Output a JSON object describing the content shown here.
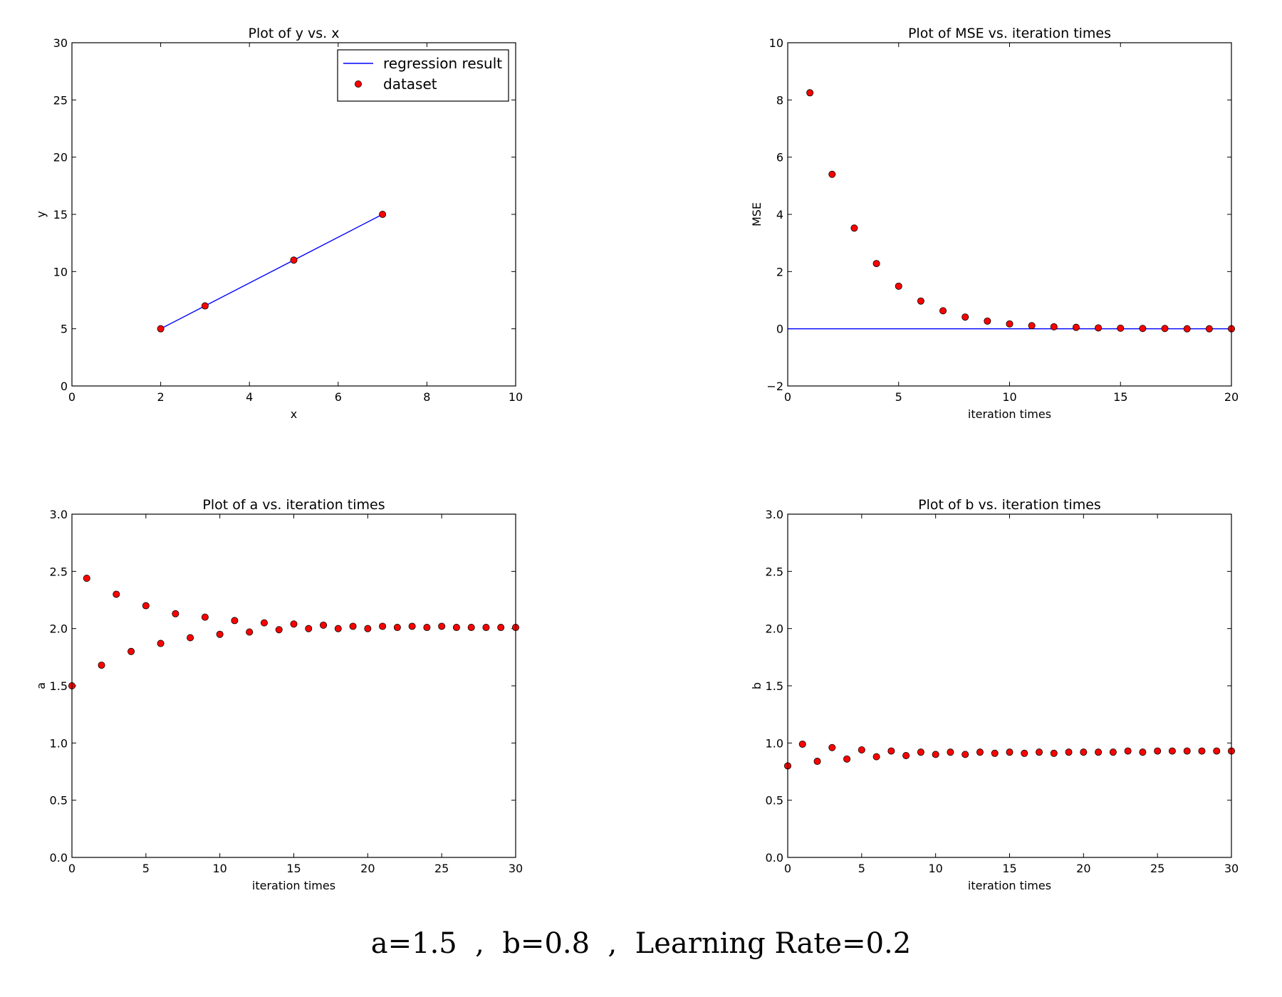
{
  "chart_data": [
    {
      "type": "scatter",
      "title": "Plot of y vs. x",
      "xlabel": "x",
      "ylabel": "y",
      "xlim": [
        0,
        10
      ],
      "ylim": [
        0,
        30
      ],
      "xticks": [
        0,
        2,
        4,
        6,
        8,
        10
      ],
      "yticks": [
        0,
        5,
        10,
        15,
        20,
        25,
        30
      ],
      "legend": "top-right",
      "series": [
        {
          "name": "regression result",
          "kind": "line",
          "color": "#0000ff",
          "x": [
            2,
            3,
            5,
            7
          ],
          "y": [
            5,
            7,
            11,
            15
          ]
        },
        {
          "name": "dataset",
          "kind": "points",
          "color": "#ff0000",
          "x": [
            2,
            3,
            5,
            7
          ],
          "y": [
            5,
            7,
            11,
            15
          ]
        }
      ]
    },
    {
      "type": "scatter",
      "title": "Plot of MSE vs. iteration times",
      "xlabel": "iteration times",
      "ylabel": "MSE",
      "xlim": [
        0,
        20
      ],
      "ylim": [
        -2,
        10
      ],
      "xticks": [
        0,
        5,
        10,
        15,
        20
      ],
      "yticks": [
        -2,
        0,
        2,
        4,
        6,
        8,
        10
      ],
      "ytick_labels": [
        "−2",
        "0",
        "2",
        "4",
        "6",
        "8",
        "10"
      ],
      "series": [
        {
          "kind": "line",
          "color": "#0000ff",
          "x": [
            0,
            20
          ],
          "y": [
            0,
            0
          ]
        },
        {
          "kind": "points",
          "color": "#ff0000",
          "x": [
            1,
            2,
            3,
            4,
            5,
            6,
            7,
            8,
            9,
            10,
            11,
            12,
            13,
            14,
            15,
            16,
            17,
            18,
            19,
            20
          ],
          "y": [
            8.25,
            5.4,
            3.52,
            2.28,
            1.49,
            0.97,
            0.63,
            0.41,
            0.27,
            0.17,
            0.11,
            0.07,
            0.05,
            0.03,
            0.02,
            0.01,
            0.01,
            0.0,
            0.0,
            0.0
          ]
        }
      ]
    },
    {
      "type": "scatter",
      "title": "Plot of a vs. iteration times",
      "xlabel": "iteration times",
      "ylabel": "a",
      "xlim": [
        0,
        30
      ],
      "ylim": [
        0,
        3
      ],
      "xticks": [
        0,
        5,
        10,
        15,
        20,
        25,
        30
      ],
      "yticks": [
        0,
        0.5,
        1,
        1.5,
        2,
        2.5,
        3
      ],
      "ytick_labels": [
        "0.0",
        "0.5",
        "1.0",
        "1.5",
        "2.0",
        "2.5",
        "3.0"
      ],
      "series": [
        {
          "kind": "points",
          "color": "#ff0000",
          "x": [
            0,
            1,
            2,
            3,
            4,
            5,
            6,
            7,
            8,
            9,
            10,
            11,
            12,
            13,
            14,
            15,
            16,
            17,
            18,
            19,
            20,
            21,
            22,
            23,
            24,
            25,
            26,
            27,
            28,
            29,
            30
          ],
          "y": [
            1.5,
            2.44,
            1.68,
            2.3,
            1.8,
            2.2,
            1.87,
            2.13,
            1.92,
            2.1,
            1.95,
            2.07,
            1.97,
            2.05,
            1.99,
            2.04,
            2.0,
            2.03,
            2.0,
            2.02,
            2.0,
            2.02,
            2.01,
            2.02,
            2.01,
            2.02,
            2.01,
            2.01,
            2.01,
            2.01,
            2.01
          ]
        }
      ]
    },
    {
      "type": "scatter",
      "title": "Plot of b vs. iteration times",
      "xlabel": "iteration times",
      "ylabel": "b",
      "xlim": [
        0,
        30
      ],
      "ylim": [
        0,
        3
      ],
      "xticks": [
        0,
        5,
        10,
        15,
        20,
        25,
        30
      ],
      "yticks": [
        0,
        0.5,
        1,
        1.5,
        2,
        2.5,
        3
      ],
      "ytick_labels": [
        "0.0",
        "0.5",
        "1.0",
        "1.5",
        "2.0",
        "2.5",
        "3.0"
      ],
      "series": [
        {
          "kind": "points",
          "color": "#ff0000",
          "x": [
            0,
            1,
            2,
            3,
            4,
            5,
            6,
            7,
            8,
            9,
            10,
            11,
            12,
            13,
            14,
            15,
            16,
            17,
            18,
            19,
            20,
            21,
            22,
            23,
            24,
            25,
            26,
            27,
            28,
            29,
            30
          ],
          "y": [
            0.8,
            0.99,
            0.84,
            0.96,
            0.86,
            0.94,
            0.88,
            0.93,
            0.89,
            0.92,
            0.9,
            0.92,
            0.9,
            0.92,
            0.91,
            0.92,
            0.91,
            0.92,
            0.91,
            0.92,
            0.92,
            0.92,
            0.92,
            0.93,
            0.92,
            0.93,
            0.93,
            0.93,
            0.93,
            0.93,
            0.93
          ]
        }
      ]
    }
  ],
  "caption": "a=1.5  ,  b=0.8  ,  Learning Rate=0.2"
}
